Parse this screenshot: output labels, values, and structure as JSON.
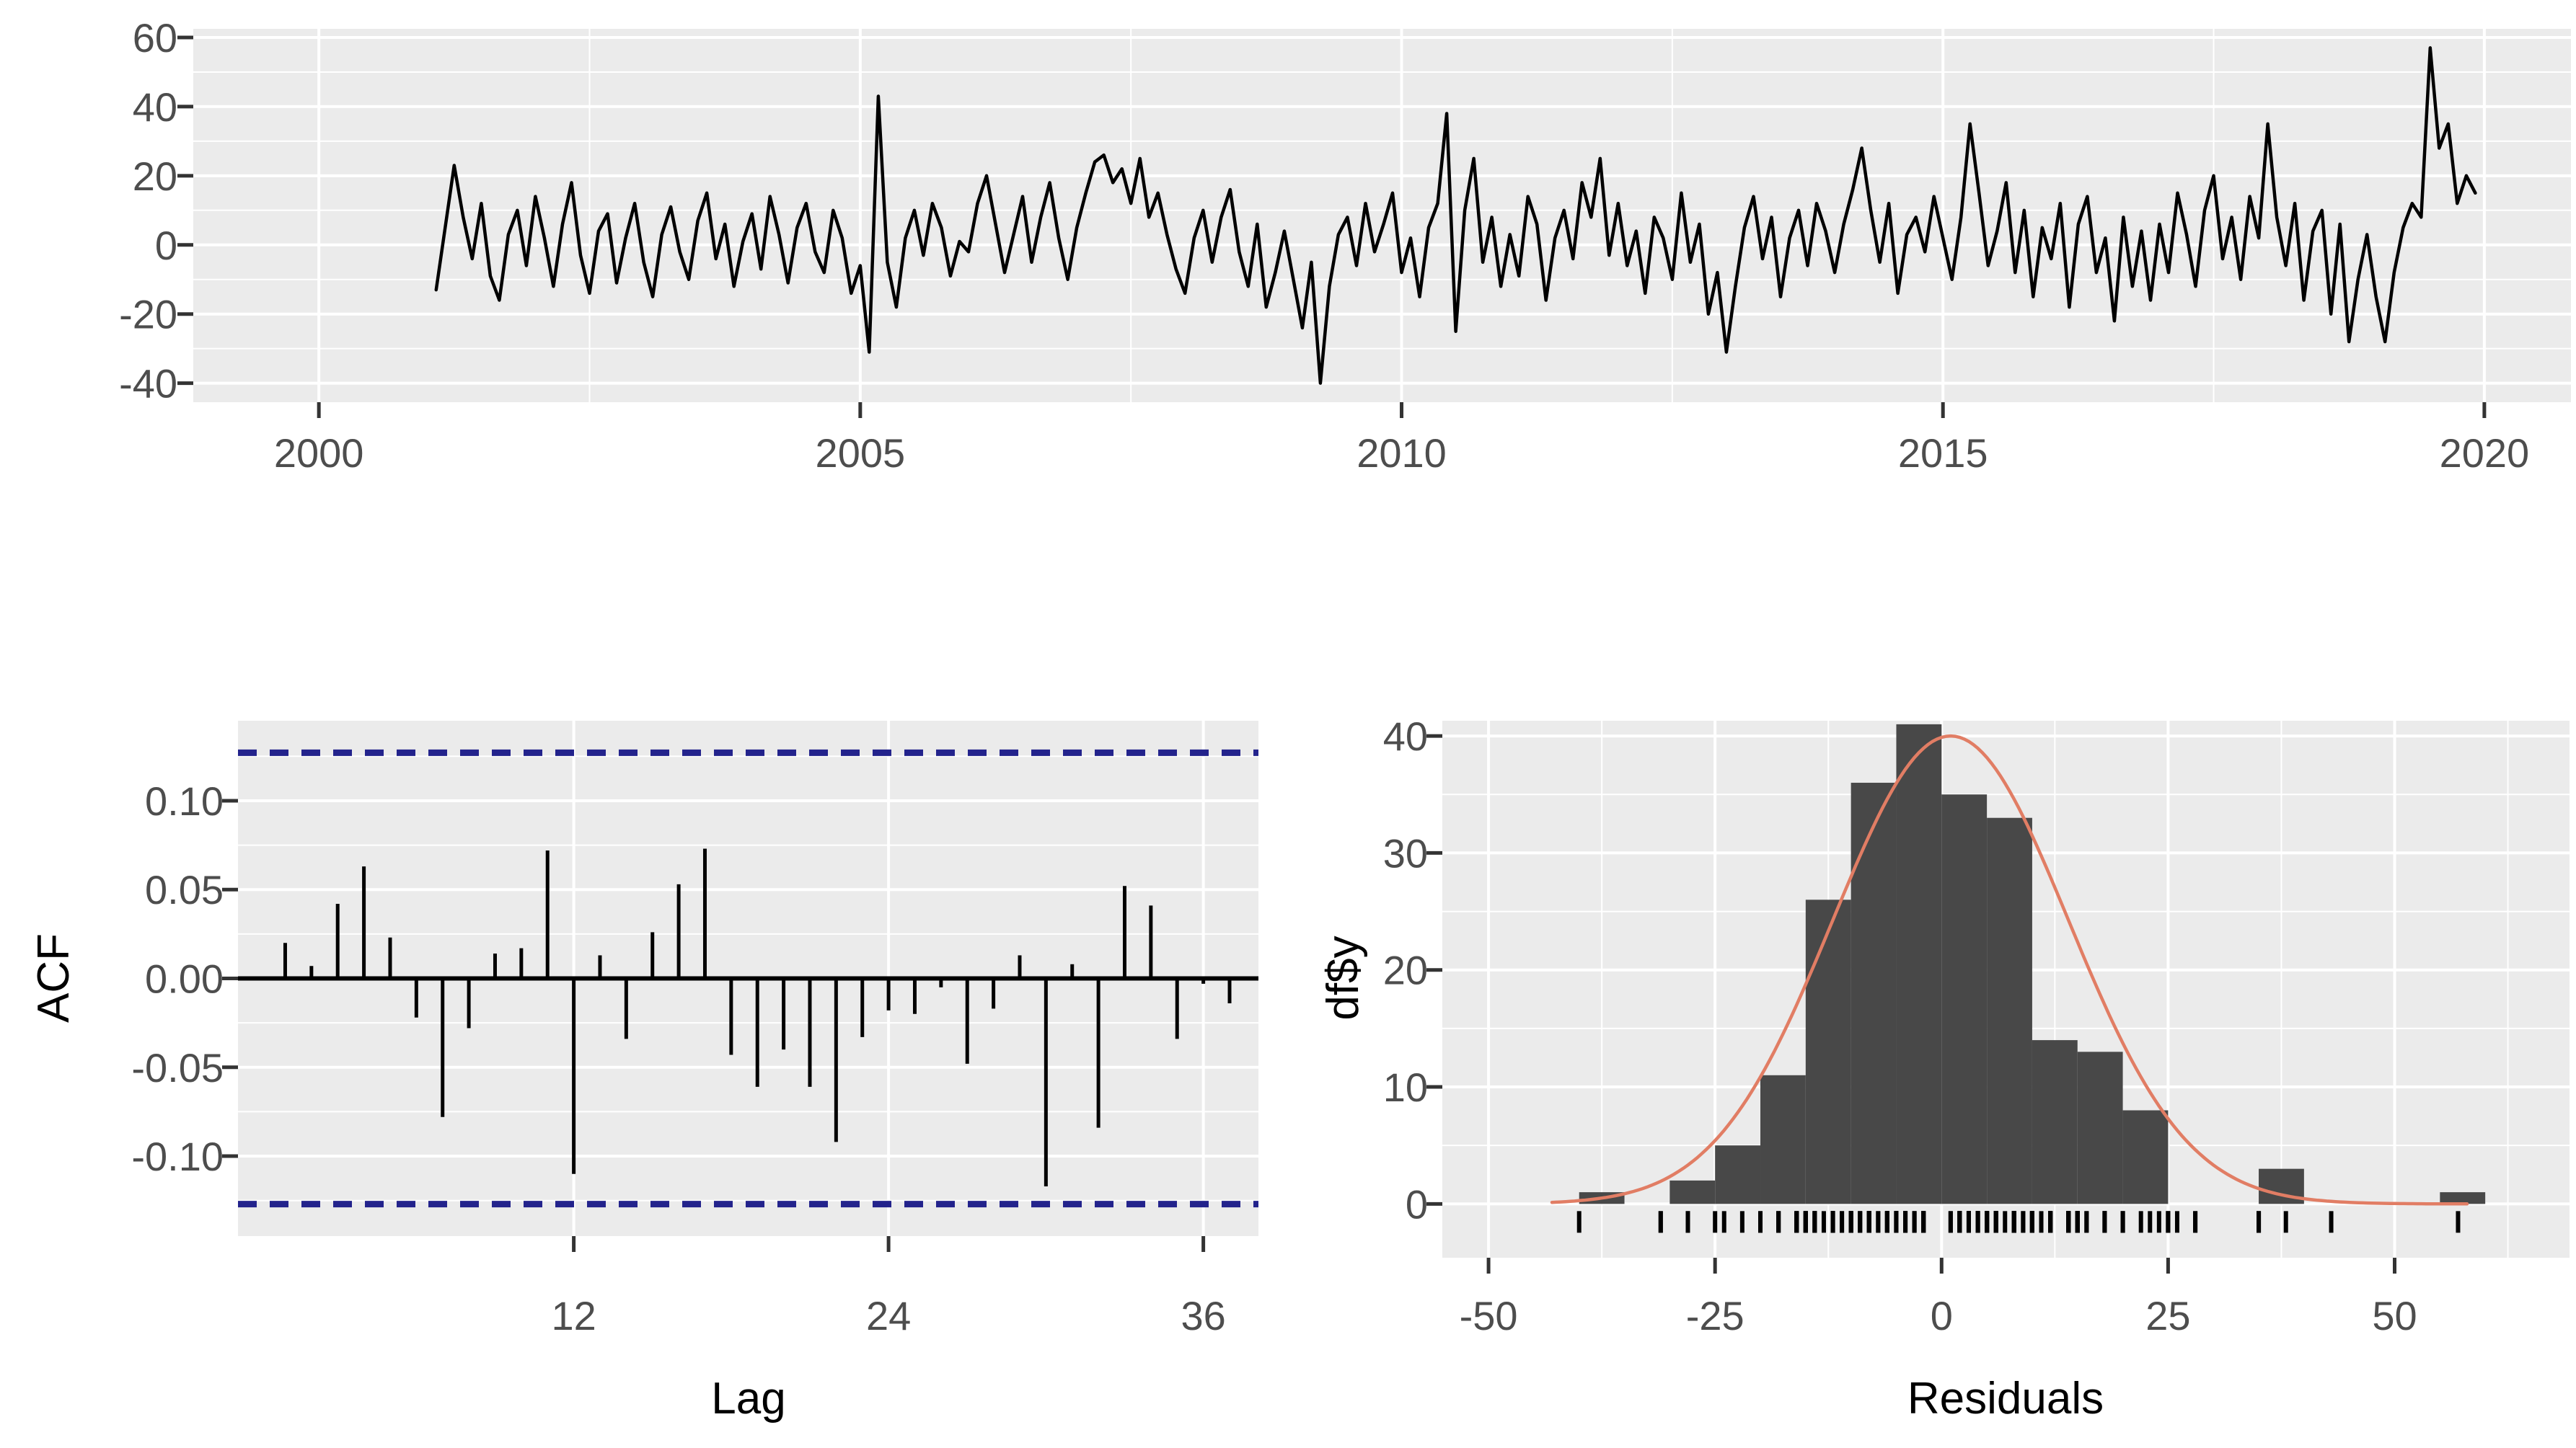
{
  "style": {
    "page_bg": "#ffffff",
    "panel_bg": "#EBEBEB",
    "grid_major": "#FFFFFF",
    "grid_minor": "#FFFFFF",
    "axis_text_color": "#4D4D4D",
    "axis_title_color": "#000000",
    "tick_mark_color": "#333333",
    "series_color": "#000000",
    "acf_bar_color": "#000000",
    "acf_zero_line_color": "#000000",
    "acf_ci_color": "#23238C",
    "hist_bar_color": "#484848",
    "hist_curve_color": "#E17D64",
    "rug_color": "#000000"
  },
  "chart_data": [
    {
      "type": "line",
      "name": "residuals-time-series",
      "title": "",
      "xlabel": "",
      "ylabel": "",
      "x_unit": "year",
      "x_start": 2001.0833,
      "x_step": 0.083333,
      "values": [
        -13,
        5,
        23,
        8,
        -4,
        12,
        -9,
        -16,
        3,
        10,
        -6,
        14,
        2,
        -12,
        6,
        18,
        -3,
        -14,
        4,
        9,
        -11,
        2,
        12,
        -5,
        -15,
        3,
        11,
        -2,
        -10,
        7,
        15,
        -4,
        6,
        -12,
        1,
        9,
        -7,
        14,
        3,
        -11,
        5,
        12,
        -2,
        -8,
        10,
        2,
        -14,
        -6,
        -31,
        43,
        -5,
        -18,
        2,
        10,
        -3,
        12,
        5,
        -9,
        1,
        -2,
        12,
        20,
        6,
        -8,
        3,
        14,
        -5,
        8,
        18,
        2,
        -10,
        5,
        15,
        24,
        26,
        18,
        22,
        12,
        25,
        8,
        15,
        3,
        -7,
        -14,
        2,
        10,
        -5,
        8,
        16,
        -2,
        -12,
        6,
        -18,
        -8,
        4,
        -10,
        -24,
        -5,
        -40,
        -12,
        3,
        8,
        -6,
        12,
        -2,
        6,
        15,
        -8,
        2,
        -15,
        5,
        12,
        38,
        -25,
        10,
        25,
        -5,
        8,
        -12,
        3,
        -9,
        14,
        6,
        -16,
        2,
        10,
        -4,
        18,
        8,
        25,
        -3,
        12,
        -6,
        4,
        -14,
        8,
        2,
        -10,
        15,
        -5,
        6,
        -20,
        -8,
        -31,
        -12,
        5,
        14,
        -4,
        8,
        -15,
        2,
        10,
        -6,
        12,
        4,
        -8,
        6,
        16,
        28,
        10,
        -5,
        12,
        -14,
        3,
        8,
        -2,
        14,
        2,
        -10,
        8,
        35,
        15,
        -6,
        4,
        18,
        -8,
        10,
        -15,
        5,
        -4,
        12,
        -18,
        6,
        14,
        -8,
        2,
        -22,
        8,
        -12,
        4,
        -16,
        6,
        -8,
        15,
        3,
        -12,
        10,
        20,
        -4,
        8,
        -10,
        14,
        2,
        35,
        8,
        -6,
        12,
        -16,
        4,
        10,
        -20,
        6,
        -28,
        -10,
        3,
        -15,
        -28,
        -8,
        5,
        12,
        8,
        57,
        28,
        35,
        12,
        20,
        15
      ],
      "xlim": [
        1998.84,
        2020.8
      ],
      "ylim": [
        -45.5,
        62.5
      ],
      "x_ticks": [
        2000,
        2005,
        2010,
        2015,
        2020
      ],
      "x_minor": [
        2002.5,
        2007.5,
        2012.5,
        2017.5
      ],
      "y_ticks": [
        60,
        40,
        20,
        0,
        -20,
        -40
      ],
      "y_minor": [
        50,
        30,
        10,
        -10,
        -30
      ],
      "grid": true,
      "legend_position": "none"
    },
    {
      "type": "bar",
      "name": "acf",
      "title": "",
      "xlabel": "Lag",
      "ylabel": "ACF",
      "start_lag": 1,
      "values": [
        0.02,
        0.007,
        0.042,
        0.063,
        0.023,
        -0.022,
        -0.078,
        -0.028,
        0.014,
        0.017,
        0.072,
        -0.11,
        0.013,
        -0.034,
        0.026,
        0.053,
        0.073,
        -0.043,
        -0.061,
        -0.04,
        -0.061,
        -0.092,
        -0.033,
        -0.018,
        -0.02,
        -0.005,
        -0.048,
        -0.017,
        0.013,
        -0.117,
        0.008,
        -0.084,
        0.052,
        0.041,
        -0.034,
        -0.003,
        -0.014
      ],
      "ci_upper": 0.127,
      "ci_lower": -0.127,
      "xlim": [
        -0.8,
        38.1
      ],
      "ylim": [
        -0.145,
        0.145
      ],
      "x_ticks": [
        12,
        24,
        36
      ],
      "y_ticks": [
        0.1,
        0.05,
        0.0,
        -0.05,
        -0.1
      ],
      "y_tick_labels": [
        "0.10",
        "0.05",
        "0.00",
        "-0.05",
        "-0.10"
      ],
      "y_minor": [
        0.125,
        0.075,
        0.025,
        -0.025,
        -0.075,
        -0.125
      ],
      "grid": true
    },
    {
      "type": "histogram",
      "name": "residual-histogram",
      "title": "",
      "xlabel": "Residuals",
      "ylabel": "df$y",
      "bin_start": -40,
      "bin_width": 5,
      "counts": [
        1,
        0,
        2,
        5,
        11,
        26,
        36,
        41,
        35,
        33,
        14,
        13,
        8,
        0,
        0,
        3,
        0,
        0,
        0,
        1
      ],
      "normal_curve": {
        "mean": 1,
        "sd": 13,
        "peak": 40,
        "x_from": -43,
        "x_to": 58
      },
      "rug_from_series": true,
      "xlim": [
        -55.1,
        69.3
      ],
      "ylim": [
        -4.6,
        41.3
      ],
      "x_ticks": [
        -50,
        -25,
        0,
        25,
        50
      ],
      "x_minor": [
        -37.5,
        -12.5,
        12.5,
        37.5,
        62.5
      ],
      "y_ticks": [
        0,
        10,
        20,
        30,
        40
      ],
      "y_minor": [
        5,
        15,
        25,
        35
      ],
      "grid": true
    }
  ]
}
